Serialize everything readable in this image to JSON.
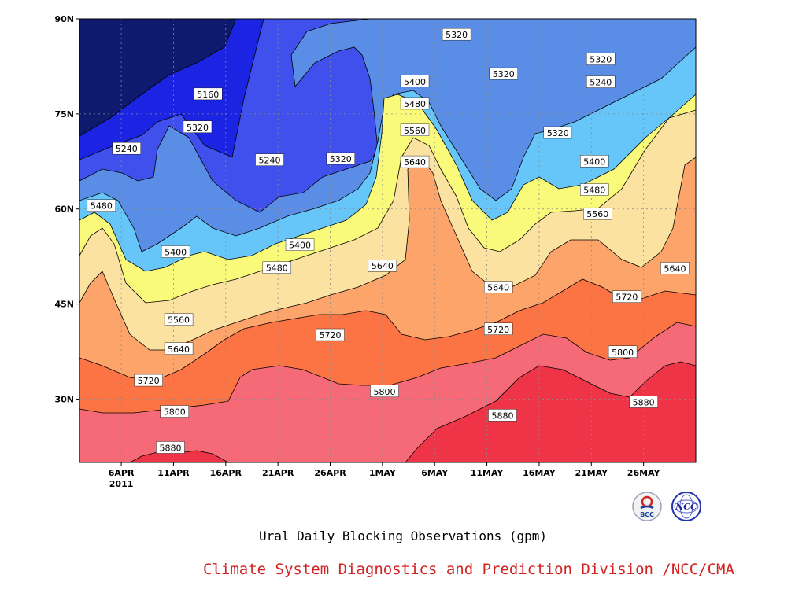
{
  "chart_data": {
    "type": "contour",
    "caption": "Ural Daily Blocking Observations (gpm)",
    "xaxis": {
      "range": [
        "2011-04-02",
        "2011-05-31"
      ],
      "ticks": [
        {
          "label": "6APR",
          "day": 4
        },
        {
          "label": "11APR",
          "day": 9
        },
        {
          "label": "16APR",
          "day": 14
        },
        {
          "label": "21APR",
          "day": 19
        },
        {
          "label": "26APR",
          "day": 24
        },
        {
          "label": "1MAY",
          "day": 29
        },
        {
          "label": "6MAY",
          "day": 34
        },
        {
          "label": "11MAY",
          "day": 39
        },
        {
          "label": "16MAY",
          "day": 44
        },
        {
          "label": "21MAY",
          "day": 49
        },
        {
          "label": "26MAY",
          "day": 54
        }
      ],
      "year_label": "2011"
    },
    "yaxis": {
      "range": [
        20,
        90
      ],
      "ticks": [
        {
          "label": "30N",
          "lat": 30
        },
        {
          "label": "45N",
          "lat": 45
        },
        {
          "label": "60N",
          "lat": 60
        },
        {
          "label": "75N",
          "lat": 75
        },
        {
          "label": "90N",
          "lat": 90
        }
      ]
    },
    "grid": true,
    "levels": [
      5160,
      5240,
      5320,
      5400,
      5480,
      5560,
      5640,
      5720,
      5800,
      5880
    ],
    "fill_colors": [
      "#0e1a6e",
      "#1b24e2",
      "#4050ec",
      "#5a8ee6",
      "#66c6fa",
      "#fafa7a",
      "#fce2a0",
      "#fca46a",
      "#fc7444",
      "#f66a78",
      "#f03448"
    ],
    "contour_labels": [
      {
        "text": "5160",
        "day": 12.3,
        "lat": 78.1
      },
      {
        "text": "5240",
        "day": 4.5,
        "lat": 69.5
      },
      {
        "text": "5320",
        "day": 11.3,
        "lat": 72.9
      },
      {
        "text": "5240",
        "day": 18.2,
        "lat": 67.7
      },
      {
        "text": "5320",
        "day": 25.0,
        "lat": 67.9
      },
      {
        "text": "5320",
        "day": 36.1,
        "lat": 87.5
      },
      {
        "text": "5400",
        "day": 32.1,
        "lat": 80.1
      },
      {
        "text": "5320",
        "day": 40.6,
        "lat": 81.3
      },
      {
        "text": "5480",
        "day": 32.1,
        "lat": 76.6
      },
      {
        "text": "5560",
        "day": 32.1,
        "lat": 72.4
      },
      {
        "text": "5640",
        "day": 32.1,
        "lat": 67.4
      },
      {
        "text": "5320",
        "day": 49.9,
        "lat": 83.6
      },
      {
        "text": "5240",
        "day": 49.9,
        "lat": 80.0
      },
      {
        "text": "5320",
        "day": 45.8,
        "lat": 72.0
      },
      {
        "text": "5400",
        "day": 49.3,
        "lat": 67.5
      },
      {
        "text": "5480",
        "day": 49.3,
        "lat": 63.0
      },
      {
        "text": "5560",
        "day": 49.6,
        "lat": 59.2
      },
      {
        "text": "5640",
        "day": 57.0,
        "lat": 50.6
      },
      {
        "text": "5480",
        "day": 2.1,
        "lat": 60.5
      },
      {
        "text": "5400",
        "day": 9.2,
        "lat": 53.2
      },
      {
        "text": "5400",
        "day": 21.1,
        "lat": 54.3
      },
      {
        "text": "5480",
        "day": 18.9,
        "lat": 50.7
      },
      {
        "text": "5640",
        "day": 29.0,
        "lat": 51.0
      },
      {
        "text": "5560",
        "day": 9.5,
        "lat": 42.5
      },
      {
        "text": "5640",
        "day": 9.5,
        "lat": 37.9
      },
      {
        "text": "5720",
        "day": 24.0,
        "lat": 40.1
      },
      {
        "text": "5640",
        "day": 40.1,
        "lat": 47.6
      },
      {
        "text": "5720",
        "day": 40.1,
        "lat": 41.0
      },
      {
        "text": "5720",
        "day": 52.4,
        "lat": 46.1
      },
      {
        "text": "5720",
        "day": 6.6,
        "lat": 32.9
      },
      {
        "text": "5800",
        "day": 9.1,
        "lat": 28.0
      },
      {
        "text": "5800",
        "day": 29.2,
        "lat": 31.2
      },
      {
        "text": "5800",
        "day": 52.0,
        "lat": 37.4
      },
      {
        "text": "5880",
        "day": 40.5,
        "lat": 27.4
      },
      {
        "text": "5880",
        "day": 54.0,
        "lat": 29.5
      },
      {
        "text": "5880",
        "day": 8.7,
        "lat": 22.3
      }
    ]
  },
  "credit": "Climate System Diagnostics and Prediction Division /NCC/CMA",
  "logos": {
    "left": "BCC",
    "right": "NCC"
  }
}
